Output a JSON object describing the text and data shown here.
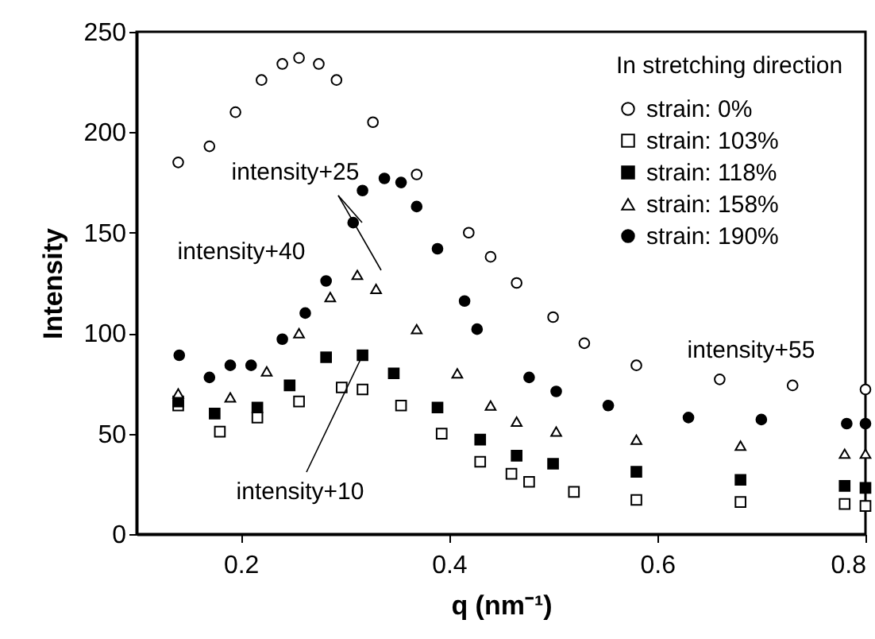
{
  "chart_data": {
    "type": "scatter",
    "xlabel": "q (nm⁻¹)",
    "ylabel": "Intensity",
    "legend_title": "In stretching direction",
    "legend": "top right",
    "grid": false,
    "xlim": [
      0.1,
      0.8
    ],
    "xticks": [
      0.2,
      0.4,
      0.6,
      0.8
    ],
    "ylim": [
      0,
      250
    ],
    "yticks": [
      0,
      50,
      100,
      150,
      200,
      250
    ],
    "annotations": [
      "intensity+25",
      "intensity+40",
      {
        "text": "intensity+10",
        "x": 0.317,
        "y": 89
      },
      "intensity+55"
    ],
    "series": [
      {
        "name": "strain: 0%",
        "color": "#ffffff",
        "marker": "circle",
        "x": [
          0.14,
          0.17,
          0.195,
          0.22,
          0.24,
          0.256,
          0.275,
          0.292,
          0.327,
          0.369,
          0.419,
          0.44,
          0.465,
          0.5,
          0.53,
          0.58,
          0.66,
          0.73,
          0.8
        ],
        "values": [
          185,
          193,
          210,
          226,
          234,
          237,
          234,
          226,
          205,
          179,
          150,
          138,
          125,
          108,
          95,
          84,
          77,
          74,
          72
        ]
      },
      {
        "name": "strain: 103%",
        "color": "#ffffff",
        "marker": "square",
        "x": [
          0.14,
          0.18,
          0.216,
          0.256,
          0.297,
          0.317,
          0.354,
          0.393,
          0.43,
          0.46,
          0.477,
          0.52,
          0.58,
          0.68,
          0.78,
          0.8
        ],
        "values": [
          64,
          51,
          58,
          66,
          73,
          72,
          64,
          50,
          36,
          30,
          26,
          21,
          17,
          16,
          15,
          14
        ]
      },
      {
        "name": "strain: 118%",
        "color": "#000000",
        "marker": "square",
        "x": [
          0.14,
          0.175,
          0.216,
          0.247,
          0.282,
          0.317,
          0.347,
          0.389,
          0.43,
          0.465,
          0.5,
          0.58,
          0.68,
          0.78,
          0.8
        ],
        "values": [
          66,
          60,
          63,
          74,
          88,
          89,
          80,
          63,
          47,
          39,
          35,
          31,
          27,
          24,
          23
        ]
      },
      {
        "name": "strain: 158%",
        "color": "#ffffff",
        "marker": "triangle",
        "x": [
          0.14,
          0.19,
          0.225,
          0.256,
          0.286,
          0.312,
          0.33,
          0.369,
          0.408,
          0.44,
          0.465,
          0.503,
          0.58,
          0.68,
          0.78,
          0.8
        ],
        "values": [
          70,
          68,
          81,
          100,
          118,
          129,
          122,
          102,
          80,
          64,
          56,
          51,
          47,
          44,
          40,
          40
        ]
      },
      {
        "name": "strain: 190%",
        "color": "#000000",
        "marker": "circle",
        "x": [
          0.141,
          0.17,
          0.19,
          0.21,
          0.24,
          0.262,
          0.282,
          0.308,
          0.317,
          0.338,
          0.354,
          0.369,
          0.389,
          0.415,
          0.427,
          0.477,
          0.503,
          0.553,
          0.63,
          0.7,
          0.782,
          0.8
        ],
        "values": [
          89,
          78,
          84,
          84,
          97,
          110,
          126,
          155,
          171,
          177,
          175,
          163,
          142,
          116,
          102,
          78,
          71,
          64,
          58,
          57,
          55,
          55
        ]
      }
    ]
  }
}
